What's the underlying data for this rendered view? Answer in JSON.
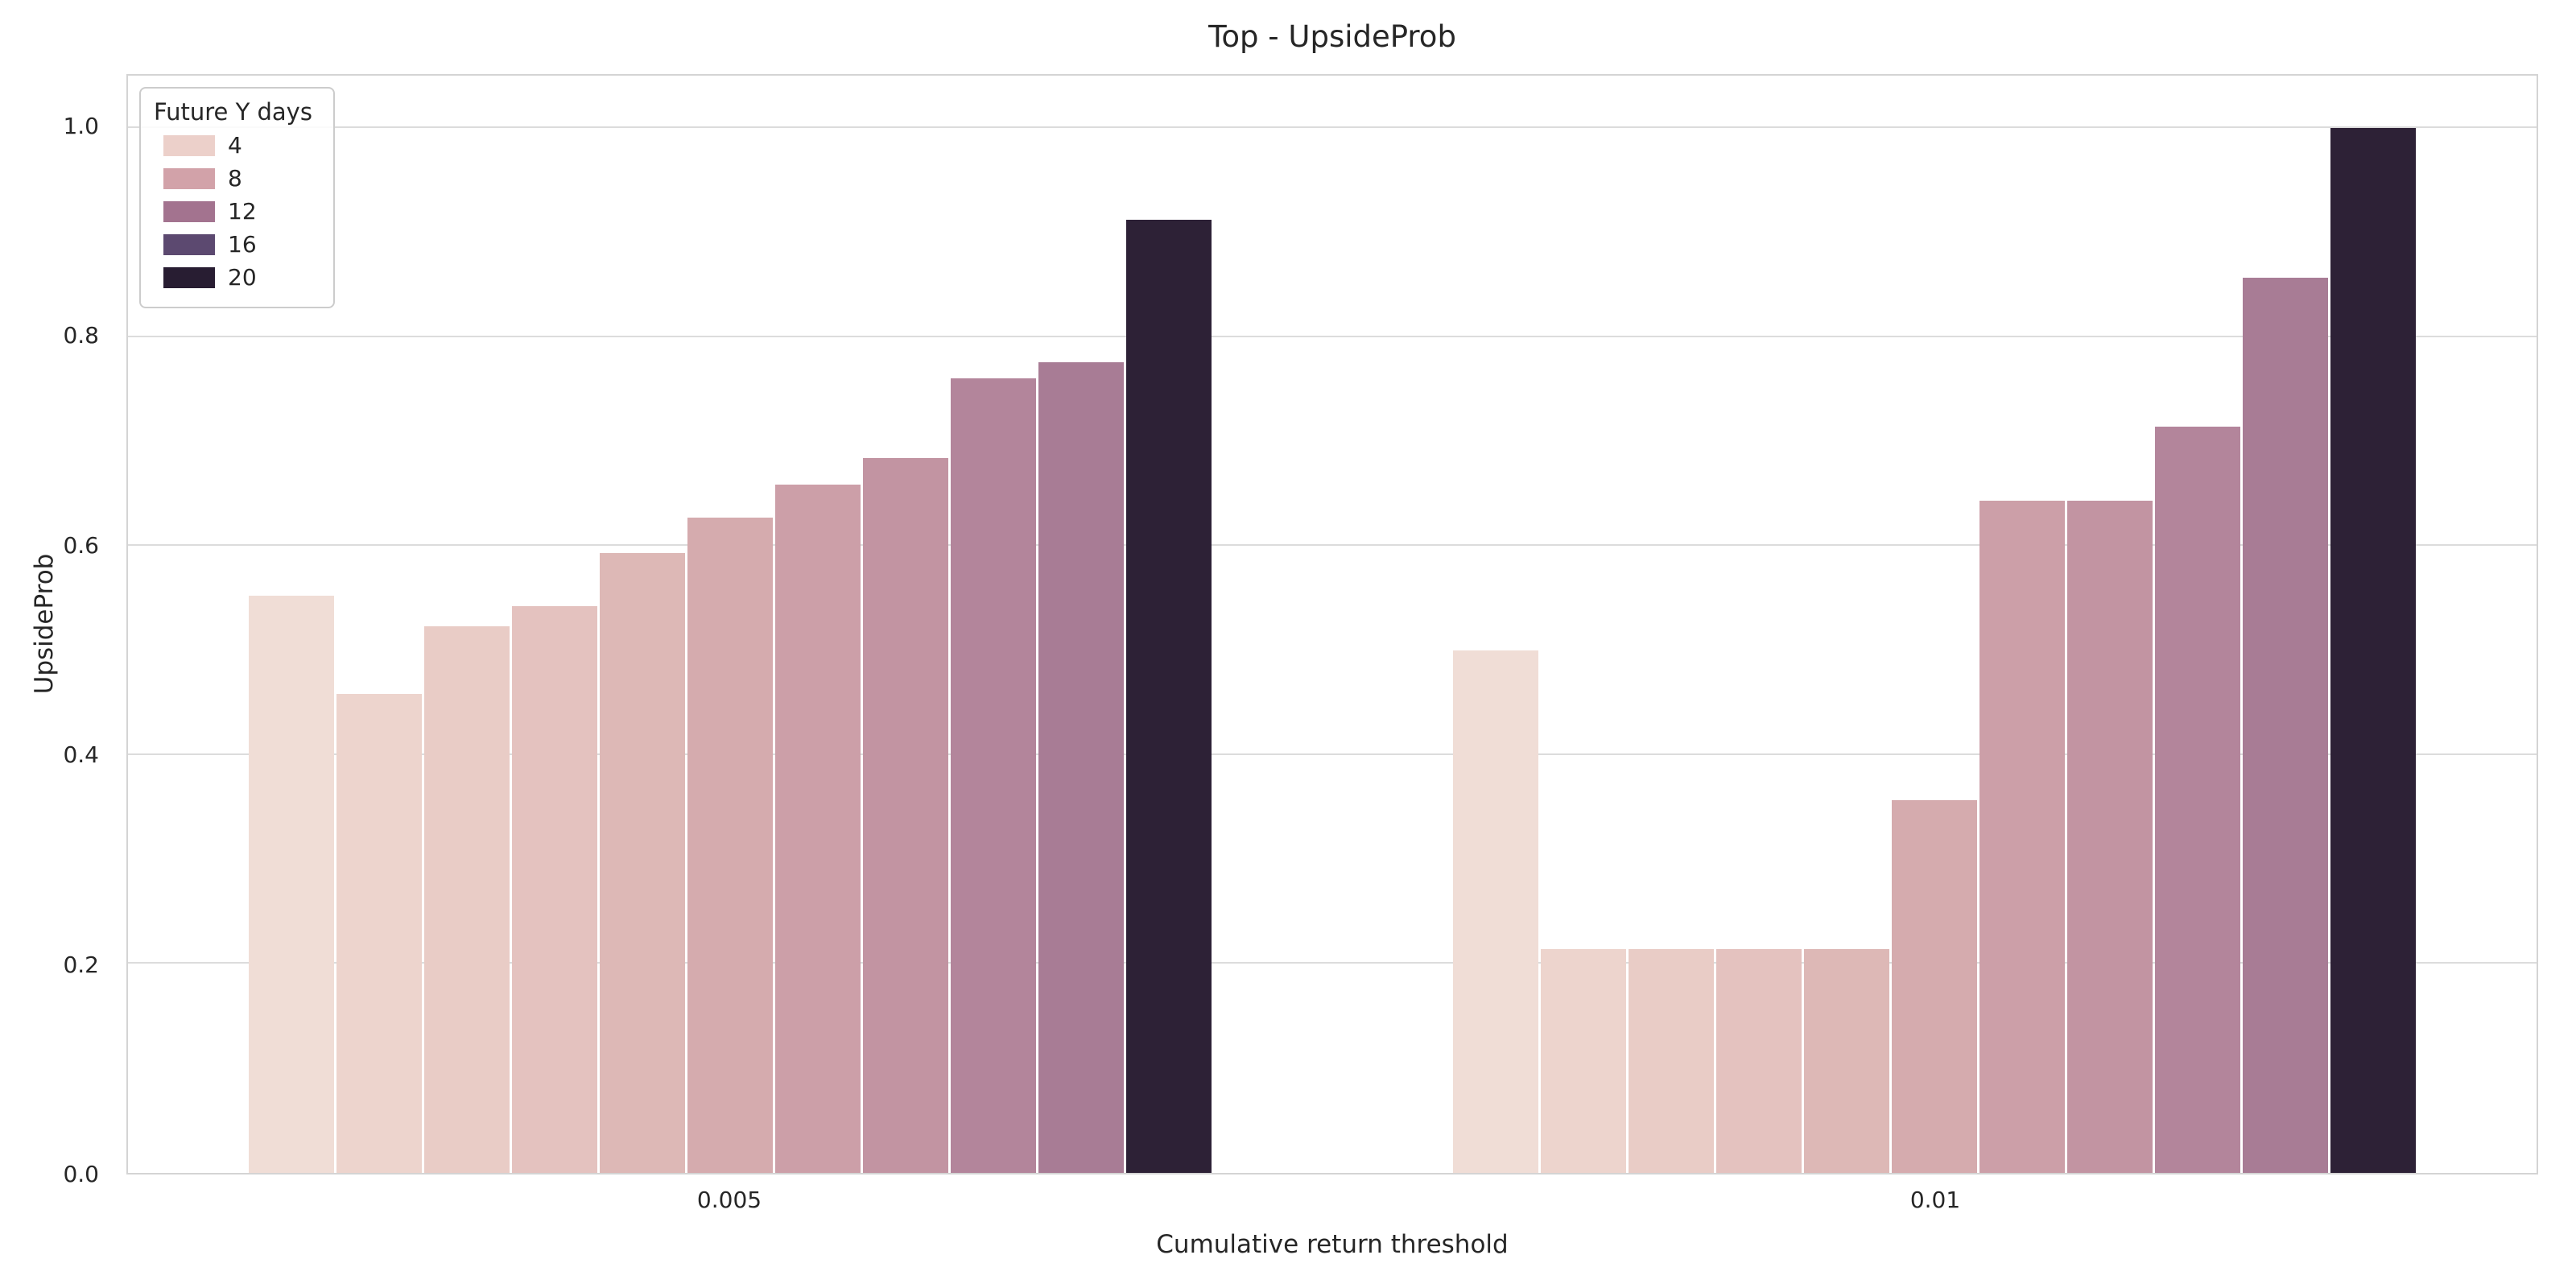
{
  "chart_data": {
    "type": "bar",
    "title": "Top - UpsideProb",
    "xlabel": "Cumulative return threshold",
    "ylabel": "UpsideProb",
    "ylim": [
      0,
      1.05
    ],
    "yticks": [
      0,
      0.2,
      0.4,
      0.6,
      0.8,
      1.0
    ],
    "categories": [
      "0.005",
      "0.01"
    ],
    "legend": {
      "title": "Future Y days",
      "entries": [
        {
          "label": "4",
          "color": "#ecd0ca"
        },
        {
          "label": "8",
          "color": "#d2a2a9"
        },
        {
          "label": "12",
          "color": "#a3738f"
        },
        {
          "label": "16",
          "color": "#5c4970"
        },
        {
          "label": "20",
          "color": "#281d32"
        }
      ]
    },
    "bar_colors": [
      "#f0ddd6",
      "#edd4cd",
      "#e9ccc6",
      "#e4c2bf",
      "#ddb8b6",
      "#d5abae",
      "#cc9fa8",
      "#c294a2",
      "#b3859b",
      "#a87c95",
      "#2d2136"
    ],
    "groups": [
      {
        "category": "0.005",
        "values": [
          0.552,
          0.458,
          0.523,
          0.542,
          0.593,
          0.627,
          0.659,
          0.684,
          0.76,
          0.776,
          0.912
        ]
      },
      {
        "category": "0.01",
        "values": [
          0.5,
          0.214,
          0.214,
          0.214,
          0.214,
          0.357,
          0.643,
          0.643,
          0.714,
          0.857,
          1.0
        ]
      }
    ],
    "grid": "horizontal",
    "legend_position": "upper-left"
  }
}
